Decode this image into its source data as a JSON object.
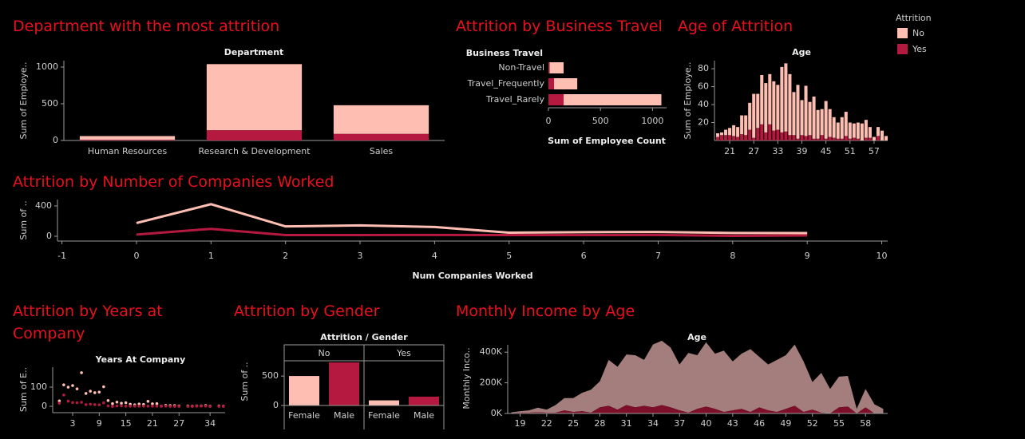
{
  "chart_data": [
    {
      "type": "bar",
      "title": "Department with the most attrition",
      "x_label": "Department",
      "y_label": "Sum of Employe..",
      "categories": [
        "Human Resources",
        "Research & Development",
        "Sales"
      ],
      "series": [
        {
          "color": "#ffbeb2",
          "values": [
            50,
            900,
            390
          ]
        },
        {
          "color": "#b5193f",
          "values": [
            10,
            140,
            90
          ]
        }
      ],
      "stacked": true,
      "ylim": [
        0,
        1087
      ],
      "yticks": [
        0,
        500,
        1000
      ]
    },
    {
      "type": "bar",
      "orientation": "horizontal",
      "title": "Attrition by Business Travel",
      "category_label": "Business Travel",
      "x_label": "Sum of Employee Count",
      "categories": [
        "Non-Travel",
        "Travel_Frequently",
        "Travel_Rarely"
      ],
      "series": [
        {
          "color": "#ffbeb2",
          "values": [
            134,
            223,
            939
          ]
        },
        {
          "color": "#b5193f",
          "values": [
            12,
            54,
            146
          ]
        }
      ],
      "stacked": true,
      "xlim": [
        0,
        1135
      ],
      "xticks": [
        0,
        500,
        1000
      ]
    },
    {
      "type": "bar",
      "title": "Age of Attrition",
      "x_label": "Age",
      "y_label": "Sum of Employe..",
      "x": [
        18,
        19,
        20,
        21,
        22,
        23,
        24,
        25,
        26,
        27,
        28,
        29,
        30,
        31,
        32,
        33,
        34,
        35,
        36,
        37,
        38,
        39,
        40,
        41,
        42,
        43,
        44,
        45,
        46,
        47,
        48,
        49,
        50,
        51,
        52,
        53,
        54,
        55,
        56,
        57,
        58,
        59,
        60
      ],
      "series": [
        {
          "name": "No",
          "color": "#ffbeb2",
          "values": [
            4,
            3,
            6,
            8,
            12,
            11,
            21,
            22,
            30,
            49,
            38,
            55,
            55,
            56,
            55,
            50,
            73,
            76,
            68,
            48,
            60,
            39,
            56,
            37,
            47,
            32,
            29,
            42,
            31,
            23,
            18,
            24,
            27,
            18,
            16,
            18,
            19,
            20,
            12,
            4,
            10,
            11,
            5
          ]
        },
        {
          "name": "Yes",
          "color": "#b5193f",
          "values": [
            4,
            6,
            6,
            6,
            5,
            4,
            7,
            6,
            12,
            3,
            14,
            18,
            9,
            18,
            11,
            12,
            9,
            10,
            6,
            6,
            2,
            6,
            5,
            6,
            2,
            2,
            6,
            2,
            4,
            3,
            2,
            2,
            5,
            2,
            3,
            2,
            0,
            3,
            3,
            0,
            5,
            0,
            0
          ]
        }
      ],
      "stacked": true,
      "legend": "top-right",
      "legend_title": "Attrition",
      "xlim": [
        17.2,
        60.4
      ],
      "xticks": [
        21,
        27,
        33,
        39,
        45,
        51,
        57
      ],
      "ylim": [
        0,
        89
      ],
      "yticks": [
        20,
        40,
        60,
        80
      ]
    },
    {
      "type": "line",
      "title": "Attrition by Number of Companies Worked",
      "x_label": "Num Companies Worked",
      "y_label": "Sum of ..",
      "x": [
        0,
        1,
        2,
        3,
        4,
        5,
        6,
        7,
        8,
        9
      ],
      "series": [
        {
          "color": "#ffbeb2",
          "values": [
            174,
            423,
            130,
            143,
            122,
            47,
            54,
            57,
            43,
            42
          ]
        },
        {
          "color": "#b5193f",
          "values": [
            23,
            98,
            16,
            16,
            17,
            16,
            16,
            17,
            6,
            10
          ]
        }
      ],
      "xlim": [
        -1.06,
        10.08
      ],
      "xticks": [
        -1,
        0,
        1,
        2,
        3,
        4,
        5,
        6,
        7,
        8,
        9,
        10
      ],
      "ylim": [
        -63,
        484
      ],
      "yticks": [
        0,
        400
      ]
    },
    {
      "type": "scatter",
      "title": "Attrition by Years at Company",
      "x_label": "Years At Company",
      "y_label": "Sum of E..",
      "x": [
        0,
        1,
        2,
        3,
        4,
        5,
        6,
        7,
        8,
        9,
        10,
        11,
        12,
        13,
        14,
        15,
        16,
        17,
        18,
        19,
        20,
        21,
        22,
        23,
        24,
        25,
        26,
        27,
        29,
        30,
        31,
        32,
        33,
        34,
        36,
        37
      ],
      "series": [
        {
          "color": "#ffbeb2",
          "values": [
            28,
            112,
            100,
            108,
            91,
            175,
            67,
            79,
            71,
            74,
            102,
            30,
            14,
            22,
            16,
            19,
            11,
            8,
            12,
            10,
            26,
            13,
            14,
            1,
            5,
            4,
            4,
            2,
            2,
            1,
            2,
            2,
            4,
            1,
            2,
            1
          ]
        },
        {
          "color": "#b5193f",
          "values": [
            16,
            59,
            27,
            20,
            19,
            21,
            9,
            11,
            9,
            8,
            18,
            2,
            0,
            2,
            2,
            1,
            1,
            1,
            1,
            1,
            1,
            1,
            1,
            1,
            1,
            0,
            0,
            0,
            0,
            0,
            1,
            1,
            1,
            0,
            0,
            0
          ]
        }
      ],
      "xlim": [
        -1.5,
        37.4
      ],
      "xticks": [
        3,
        9,
        15,
        21,
        27,
        34
      ],
      "ylim": [
        -33,
        204
      ],
      "yticks": [
        0,
        100
      ]
    },
    {
      "type": "bar",
      "title": "Attrition by Gender",
      "x_label": "Attrition / Gender",
      "y_label": "Sum of ..",
      "categories": [
        "Female",
        "Male"
      ],
      "category_colors": [
        "#ffbeb2",
        "#b5193f"
      ],
      "series": [
        {
          "name": "No",
          "values": [
            501,
            732
          ]
        },
        {
          "name": "Yes",
          "values": [
            87,
            150
          ]
        }
      ],
      "ylim": [
        0,
        760
      ],
      "yticks": [
        0,
        500
      ]
    },
    {
      "type": "area",
      "title": "Monthly Income by Age",
      "x_label": "Age",
      "y_label": "Monthly Inco..",
      "x": [
        18,
        19,
        20,
        21,
        22,
        23,
        24,
        25,
        26,
        27,
        28,
        29,
        30,
        31,
        32,
        33,
        34,
        35,
        36,
        37,
        38,
        39,
        40,
        41,
        42,
        43,
        44,
        45,
        46,
        47,
        48,
        49,
        50,
        51,
        52,
        53,
        54,
        55,
        56,
        57,
        58,
        59,
        60
      ],
      "series": [
        {
          "color": "#a47e7d",
          "values": [
            5000,
            10000,
            15000,
            30000,
            20000,
            50000,
            80000,
            90000,
            120000,
            150000,
            170000,
            300000,
            280000,
            330000,
            340000,
            300000,
            410000,
            420000,
            390000,
            300000,
            390000,
            350000,
            420000,
            360000,
            400000,
            320000,
            360000,
            410000,
            330000,
            300000,
            340000,
            350000,
            400000,
            330000,
            180000,
            260000,
            160000,
            200000,
            200000,
            30000,
            120000,
            60000,
            30000
          ]
        },
        {
          "color": "#7d0f2a",
          "values": [
            2000,
            5000,
            5000,
            8000,
            5000,
            5000,
            20000,
            10000,
            15000,
            5000,
            40000,
            50000,
            25000,
            55000,
            40000,
            50000,
            40000,
            55000,
            40000,
            20000,
            5000,
            30000,
            45000,
            30000,
            10000,
            20000,
            30000,
            10000,
            40000,
            20000,
            10000,
            30000,
            50000,
            10000,
            25000,
            5000,
            0,
            40000,
            45000,
            0,
            40000,
            0,
            0
          ]
        }
      ],
      "stacked": true,
      "xlim": [
        17.6,
        60.5
      ],
      "xticks": [
        19,
        22,
        25,
        28,
        31,
        34,
        37,
        40,
        43,
        46,
        49,
        52,
        55,
        58
      ],
      "ylim": [
        0,
        448000
      ],
      "yticks": [
        {
          "value": 0,
          "label": "0K"
        },
        {
          "value": 200000,
          "label": "200K"
        },
        {
          "value": 400000,
          "label": "400K"
        }
      ]
    }
  ]
}
